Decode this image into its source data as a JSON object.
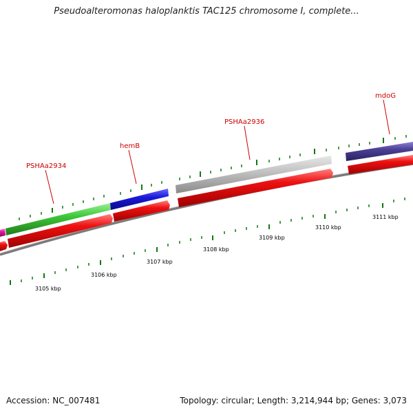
{
  "header": {
    "title": "Pseudoalteromonas haloplanktis TAC125 chromosome I, complete..."
  },
  "footer": {
    "accession": "Accession: NC_007481",
    "summary": "Topology: circular; Length: 3,214,944 bp; Genes: 3,073"
  },
  "map": {
    "backbone_color": "#808080",
    "position_labels": [
      "3105 kbp",
      "3106 kbp",
      "3107 kbp",
      "3108 kbp",
      "3109 kbp",
      "3110 kbp",
      "3111 kbp"
    ],
    "gene_labels": [
      "PSHAa2934",
      "hemB",
      "PSHAa2936",
      "mdoG"
    ],
    "genes": [
      {
        "id": "magenta-gene",
        "color": "#e0179c"
      },
      {
        "id": "PSHAa2934",
        "color": "#3fc83a"
      },
      {
        "id": "hemB",
        "color": "#1a1adb"
      },
      {
        "id": "PSHAa2936",
        "color": "#bdbdbd"
      },
      {
        "id": "mdoG",
        "color": "#4b3f96"
      }
    ],
    "cds_color": "#ee1111",
    "label_color": "#cc0000",
    "tick_color": "#117711"
  }
}
